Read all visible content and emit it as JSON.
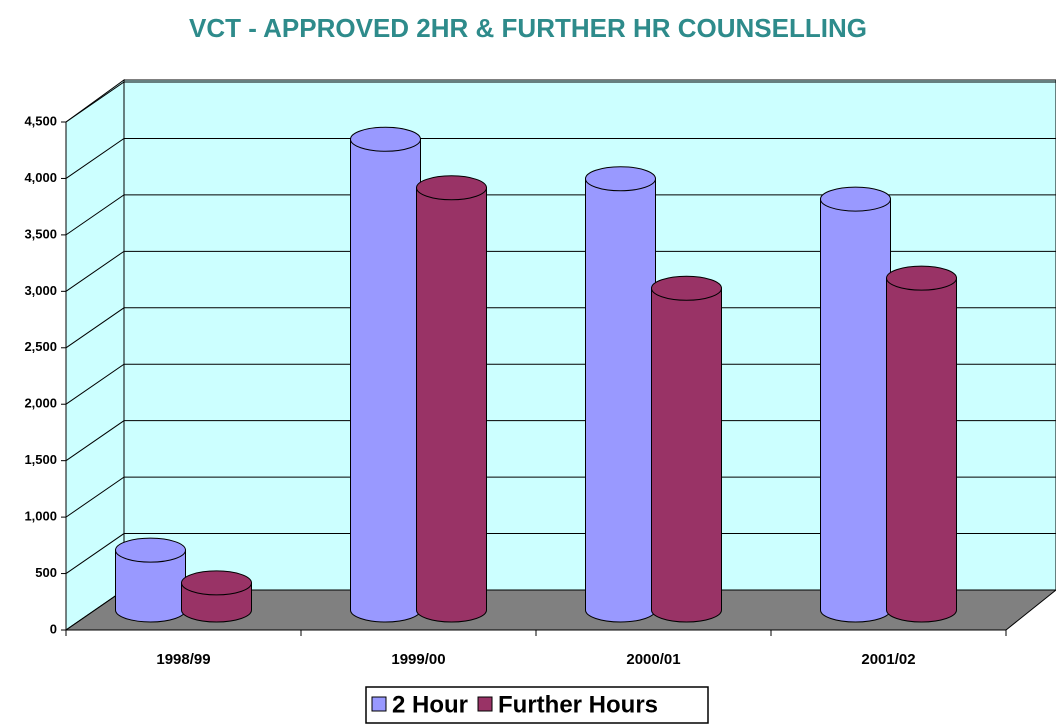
{
  "chart_data": {
    "type": "bar3d",
    "title": "VCT - APPROVED 2HR & FURTHER HR COUNSELLING",
    "categories": [
      "1998/99",
      "1999/00",
      "2000/01",
      "2001/02"
    ],
    "series": [
      {
        "name": "2 Hour",
        "color": "#9999ff",
        "values": [
          530,
          4170,
          3820,
          3640
        ]
      },
      {
        "name": "Further Hours",
        "color": "#993366",
        "values": [
          240,
          3740,
          2850,
          2940
        ]
      }
    ],
    "ylim": [
      0,
      4500
    ],
    "yticks": [
      0,
      500,
      {
        "value": 1000,
        "label": "1,000"
      },
      {
        "value": 1500,
        "label": "1,500"
      },
      {
        "value": 2000,
        "label": "2,000"
      },
      {
        "value": 2500,
        "label": "2,500"
      },
      {
        "value": 3000,
        "label": "3,000"
      },
      {
        "value": 3500,
        "label": "3,500"
      },
      {
        "value": 4000,
        "label": "4,000"
      },
      {
        "value": 4500,
        "label": "4,500"
      }
    ],
    "grid": true,
    "legend": "bottom"
  }
}
